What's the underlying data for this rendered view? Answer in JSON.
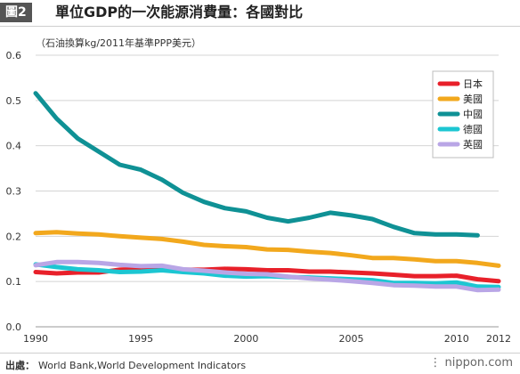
{
  "figure_badge": "圖2",
  "title": "單位GDP的一次能源消費量：各國對比",
  "unit_note": "（石油換算kg/2011年基準PPP美元）",
  "source_label": "出處：",
  "source_text": "World Bank,World Development Indicators",
  "brand": "nippon.com",
  "chart_data": {
    "type": "line",
    "title": "單位GDP的一次能源消費量：各國對比",
    "ylabel": "（石油換算kg/2011年基準PPP美元）",
    "xlabel": "",
    "x": [
      1990,
      1991,
      1992,
      1993,
      1994,
      1995,
      1996,
      1997,
      1998,
      1999,
      2000,
      2001,
      2002,
      2003,
      2004,
      2005,
      2006,
      2007,
      2008,
      2009,
      2010,
      2011,
      2012
    ],
    "xlim": [
      1990,
      2012
    ],
    "ylim": [
      0,
      0.6
    ],
    "x_ticks": [
      1990,
      1995,
      2000,
      2005,
      2010,
      2012
    ],
    "y_ticks": [
      0.0,
      0.1,
      0.2,
      0.3,
      0.4,
      0.5,
      0.6
    ],
    "y_tick_labels": [
      "0.0",
      "0.1",
      "0.2",
      "0.3",
      "0.4",
      "0.5",
      "0.6"
    ],
    "grid": "horizontal",
    "legend_position": "top-right",
    "series": [
      {
        "name": "日本",
        "color": "#e8202a",
        "values": [
          0.121,
          0.118,
          0.12,
          0.12,
          0.126,
          0.128,
          0.127,
          0.126,
          0.126,
          0.128,
          0.127,
          0.125,
          0.125,
          0.122,
          0.122,
          0.12,
          0.118,
          0.115,
          0.112,
          0.112,
          0.113,
          0.105,
          0.101
        ]
      },
      {
        "name": "美國",
        "color": "#f2a81d",
        "values": [
          0.207,
          0.209,
          0.206,
          0.204,
          0.2,
          0.197,
          0.194,
          0.188,
          0.181,
          0.178,
          0.176,
          0.171,
          0.17,
          0.166,
          0.163,
          0.158,
          0.152,
          0.152,
          0.149,
          0.145,
          0.145,
          0.141,
          0.135
        ]
      },
      {
        "name": "中國",
        "color": "#0f9195",
        "values": [
          0.516,
          0.46,
          0.416,
          0.387,
          0.358,
          0.347,
          0.325,
          0.296,
          0.276,
          0.262,
          0.255,
          0.241,
          0.233,
          0.241,
          0.252,
          0.246,
          0.238,
          0.221,
          0.207,
          0.204,
          0.204,
          0.202,
          null
        ]
      },
      {
        "name": "德國",
        "color": "#1cc6d2",
        "values": [
          0.138,
          0.132,
          0.127,
          0.125,
          0.121,
          0.122,
          0.125,
          0.121,
          0.118,
          0.113,
          0.111,
          0.112,
          0.11,
          0.109,
          0.107,
          0.105,
          0.103,
          0.097,
          0.097,
          0.096,
          0.098,
          0.089,
          0.088
        ]
      },
      {
        "name": "英國",
        "color": "#b9a6e6",
        "values": [
          0.136,
          0.143,
          0.143,
          0.141,
          0.137,
          0.134,
          0.135,
          0.127,
          0.124,
          0.12,
          0.117,
          0.116,
          0.111,
          0.107,
          0.104,
          0.101,
          0.097,
          0.092,
          0.091,
          0.089,
          0.089,
          0.081,
          0.082
        ]
      }
    ]
  }
}
